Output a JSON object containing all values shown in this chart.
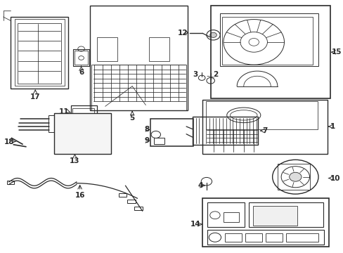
{
  "bg_color": "#ffffff",
  "line_color": "#2a2a2a",
  "label_color": "#000000",
  "fig_width": 4.89,
  "fig_height": 3.6,
  "dpi": 100,
  "fs": 7.5,
  "lw_main": 0.9,
  "lw_detail": 0.55,
  "parts_positions": {
    "1": [
      0.97,
      0.435,
      "left"
    ],
    "2": [
      0.64,
      0.72,
      "left"
    ],
    "3": [
      0.618,
      0.72,
      "right"
    ],
    "4": [
      0.62,
      0.255,
      "right"
    ],
    "5": [
      0.39,
      0.555,
      "center"
    ],
    "6": [
      0.238,
      0.74,
      "center"
    ],
    "7": [
      0.82,
      0.44,
      "left"
    ],
    "8": [
      0.483,
      0.48,
      "right"
    ],
    "9": [
      0.483,
      0.44,
      "right"
    ],
    "10": [
      0.97,
      0.215,
      "left"
    ],
    "11": [
      0.195,
      0.54,
      "right"
    ],
    "12": [
      0.572,
      0.87,
      "right"
    ],
    "13": [
      0.22,
      0.345,
      "center"
    ],
    "14": [
      0.598,
      0.088,
      "right"
    ],
    "15": [
      0.975,
      0.78,
      "left"
    ],
    "16": [
      0.235,
      0.23,
      "center"
    ],
    "17": [
      0.103,
      0.62,
      "center"
    ],
    "18": [
      0.043,
      0.418,
      "right"
    ]
  }
}
